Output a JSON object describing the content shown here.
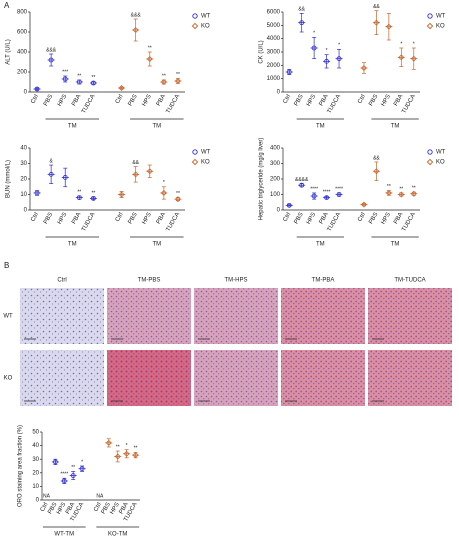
{
  "panels": [
    "A",
    "B"
  ],
  "histology": {
    "columns": [
      "Ctrl",
      "TM-PBS",
      "TM-HPS",
      "TM-PBA",
      "TM-TUDCA"
    ],
    "rows": [
      "WT",
      "KO"
    ]
  },
  "chart_data": [
    {
      "type": "dot",
      "y_label": "ALT (U/L)",
      "ylim": [
        0,
        800
      ],
      "yticks": [
        0,
        200,
        400,
        600,
        800
      ],
      "legend": true,
      "categories": [
        "Ctrl",
        "PBS",
        "HPS",
        "PBA",
        "TUDCA",
        "Ctrl",
        "PBS",
        "HPS",
        "PBA",
        "TUDCA"
      ],
      "groups": [
        {
          "label": "TM",
          "categories": [
            1,
            2,
            3,
            4
          ]
        },
        {
          "label": "TM",
          "categories": [
            6,
            7,
            8,
            9
          ]
        }
      ],
      "series": [
        {
          "name": "WT",
          "color": "#2b2bd6",
          "values": [
            30,
            320,
            130,
            100,
            90,
            null,
            null,
            null,
            null,
            null
          ],
          "errors": [
            10,
            60,
            30,
            20,
            15,
            null,
            null,
            null,
            null,
            null
          ],
          "annotations": [
            null,
            "&&&",
            "***",
            "**",
            "**",
            null,
            null,
            null,
            null,
            null
          ]
        },
        {
          "name": "KO",
          "color": "#c8642a",
          "values": [
            null,
            null,
            null,
            null,
            null,
            40,
            620,
            330,
            100,
            110
          ],
          "errors": [
            null,
            null,
            null,
            null,
            null,
            10,
            110,
            70,
            20,
            25
          ],
          "annotations": [
            null,
            null,
            null,
            null,
            null,
            null,
            "&&&",
            "**",
            "**",
            "**"
          ]
        }
      ]
    },
    {
      "type": "dot",
      "y_label": "CK (U/L)",
      "ylim": [
        0,
        6000
      ],
      "yticks": [
        0,
        1000,
        2000,
        3000,
        4000,
        5000,
        6000
      ],
      "legend": true,
      "categories": [
        "Ctrl",
        "PBS",
        "HPS",
        "PBA",
        "TUDCA",
        "Ctrl",
        "PBS",
        "HPS",
        "PBA",
        "TUDCA"
      ],
      "groups": [
        {
          "label": "TM",
          "categories": [
            1,
            2,
            3,
            4
          ]
        },
        {
          "label": "TM",
          "categories": [
            6,
            7,
            8,
            9
          ]
        }
      ],
      "series": [
        {
          "name": "WT",
          "color": "#2b2bd6",
          "values": [
            1500,
            5200,
            3300,
            2300,
            2500,
            null,
            null,
            null,
            null,
            null
          ],
          "errors": [
            200,
            700,
            800,
            500,
            700,
            null,
            null,
            null,
            null,
            null
          ],
          "annotations": [
            null,
            "&&",
            "*",
            "*",
            "*",
            null,
            null,
            null,
            null,
            null
          ]
        },
        {
          "name": "KO",
          "color": "#c8642a",
          "values": [
            null,
            null,
            null,
            null,
            null,
            1800,
            5200,
            4900,
            2600,
            2500
          ],
          "errors": [
            null,
            null,
            null,
            null,
            null,
            400,
            900,
            1000,
            700,
            800
          ],
          "annotations": [
            null,
            null,
            null,
            null,
            null,
            null,
            "&&",
            null,
            "*",
            "*"
          ]
        }
      ]
    },
    {
      "type": "dot",
      "y_label": "BUN (mmol/L)",
      "ylim": [
        0,
        40
      ],
      "yticks": [
        0,
        10,
        20,
        30,
        40
      ],
      "legend": true,
      "categories": [
        "Ctrl",
        "PBS",
        "HPS",
        "PBA",
        "TUDCA",
        "Ctrl",
        "PBS",
        "HPS",
        "PBA",
        "TUDCA"
      ],
      "groups": [
        {
          "label": "TM",
          "categories": [
            1,
            2,
            3,
            4
          ]
        },
        {
          "label": "TM",
          "categories": [
            6,
            7,
            8,
            9
          ]
        }
      ],
      "series": [
        {
          "name": "WT",
          "color": "#2b2bd6",
          "values": [
            11,
            23,
            21,
            8,
            7.5,
            null,
            null,
            null,
            null,
            null
          ],
          "errors": [
            1.5,
            6,
            6,
            1,
            0.8,
            null,
            null,
            null,
            null,
            null
          ],
          "annotations": [
            null,
            "&",
            null,
            "**",
            "**",
            null,
            null,
            null,
            null,
            null
          ]
        },
        {
          "name": "KO",
          "color": "#c8642a",
          "values": [
            null,
            null,
            null,
            null,
            null,
            10,
            23,
            25,
            11,
            7
          ],
          "errors": [
            null,
            null,
            null,
            null,
            null,
            2,
            5,
            4,
            4,
            1
          ],
          "annotations": [
            null,
            null,
            null,
            null,
            null,
            null,
            "&&",
            null,
            "*",
            "**"
          ]
        }
      ]
    },
    {
      "type": "dot",
      "y_label": "Hepatic triglyceride (mg/g liver)",
      "ylim": [
        0,
        400
      ],
      "yticks": [
        0,
        100,
        200,
        300,
        400
      ],
      "legend": true,
      "categories": [
        "Ctrl",
        "PBS",
        "HPS",
        "PBA",
        "TUDCA",
        "Ctrl",
        "PBS",
        "HPS",
        "PBA",
        "TUDCA"
      ],
      "groups": [
        {
          "label": "TM",
          "categories": [
            1,
            2,
            3,
            4
          ]
        },
        {
          "label": "TM",
          "categories": [
            6,
            7,
            8,
            9
          ]
        }
      ],
      "series": [
        {
          "name": "WT",
          "color": "#2b2bd6",
          "values": [
            30,
            160,
            90,
            80,
            100,
            null,
            null,
            null,
            null,
            null
          ],
          "errors": [
            5,
            10,
            20,
            8,
            10,
            null,
            null,
            null,
            null,
            null
          ],
          "annotations": [
            null,
            "&&&&",
            "****",
            "****",
            "****",
            null,
            null,
            null,
            null,
            null
          ]
        },
        {
          "name": "KO",
          "color": "#c8642a",
          "values": [
            null,
            null,
            null,
            null,
            null,
            35,
            250,
            110,
            100,
            105
          ],
          "errors": [
            null,
            null,
            null,
            null,
            null,
            8,
            60,
            15,
            10,
            10
          ],
          "annotations": [
            null,
            null,
            null,
            null,
            null,
            null,
            "&&",
            "**",
            "**",
            "**"
          ]
        }
      ]
    },
    {
      "type": "dot",
      "y_label": "ORO staining area fraction (%)",
      "ylim": [
        0,
        50
      ],
      "yticks": [
        0,
        10,
        20,
        30,
        40,
        50
      ],
      "legend": false,
      "categories": [
        "Ctrl",
        "PBS",
        "HPS",
        "PBA",
        "TUDCA",
        "Ctrl",
        "PBS",
        "HPS",
        "PBA",
        "TUDCA"
      ],
      "groups": [
        {
          "label": "WT-TM",
          "categories": [
            0,
            1,
            2,
            3,
            4
          ]
        },
        {
          "label": "KO-TM",
          "categories": [
            5,
            6,
            7,
            8,
            9
          ]
        }
      ],
      "series": [
        {
          "name": "WT",
          "color": "#2b2bd6",
          "values": [
            null,
            28,
            14,
            18,
            23,
            null,
            null,
            null,
            null,
            null
          ],
          "errors": [
            null,
            2,
            2,
            3,
            2,
            null,
            null,
            null,
            null,
            null
          ],
          "annotations": [
            "NA",
            null,
            "****",
            "**",
            "*",
            null,
            null,
            null,
            null,
            null
          ]
        },
        {
          "name": "KO",
          "color": "#c8642a",
          "values": [
            null,
            null,
            null,
            null,
            null,
            null,
            42,
            32,
            34,
            33
          ],
          "errors": [
            null,
            null,
            null,
            null,
            null,
            null,
            3,
            4,
            3,
            2
          ],
          "annotations": [
            null,
            null,
            null,
            null,
            null,
            "NA",
            null,
            "**",
            "*",
            "**"
          ]
        }
      ]
    }
  ]
}
